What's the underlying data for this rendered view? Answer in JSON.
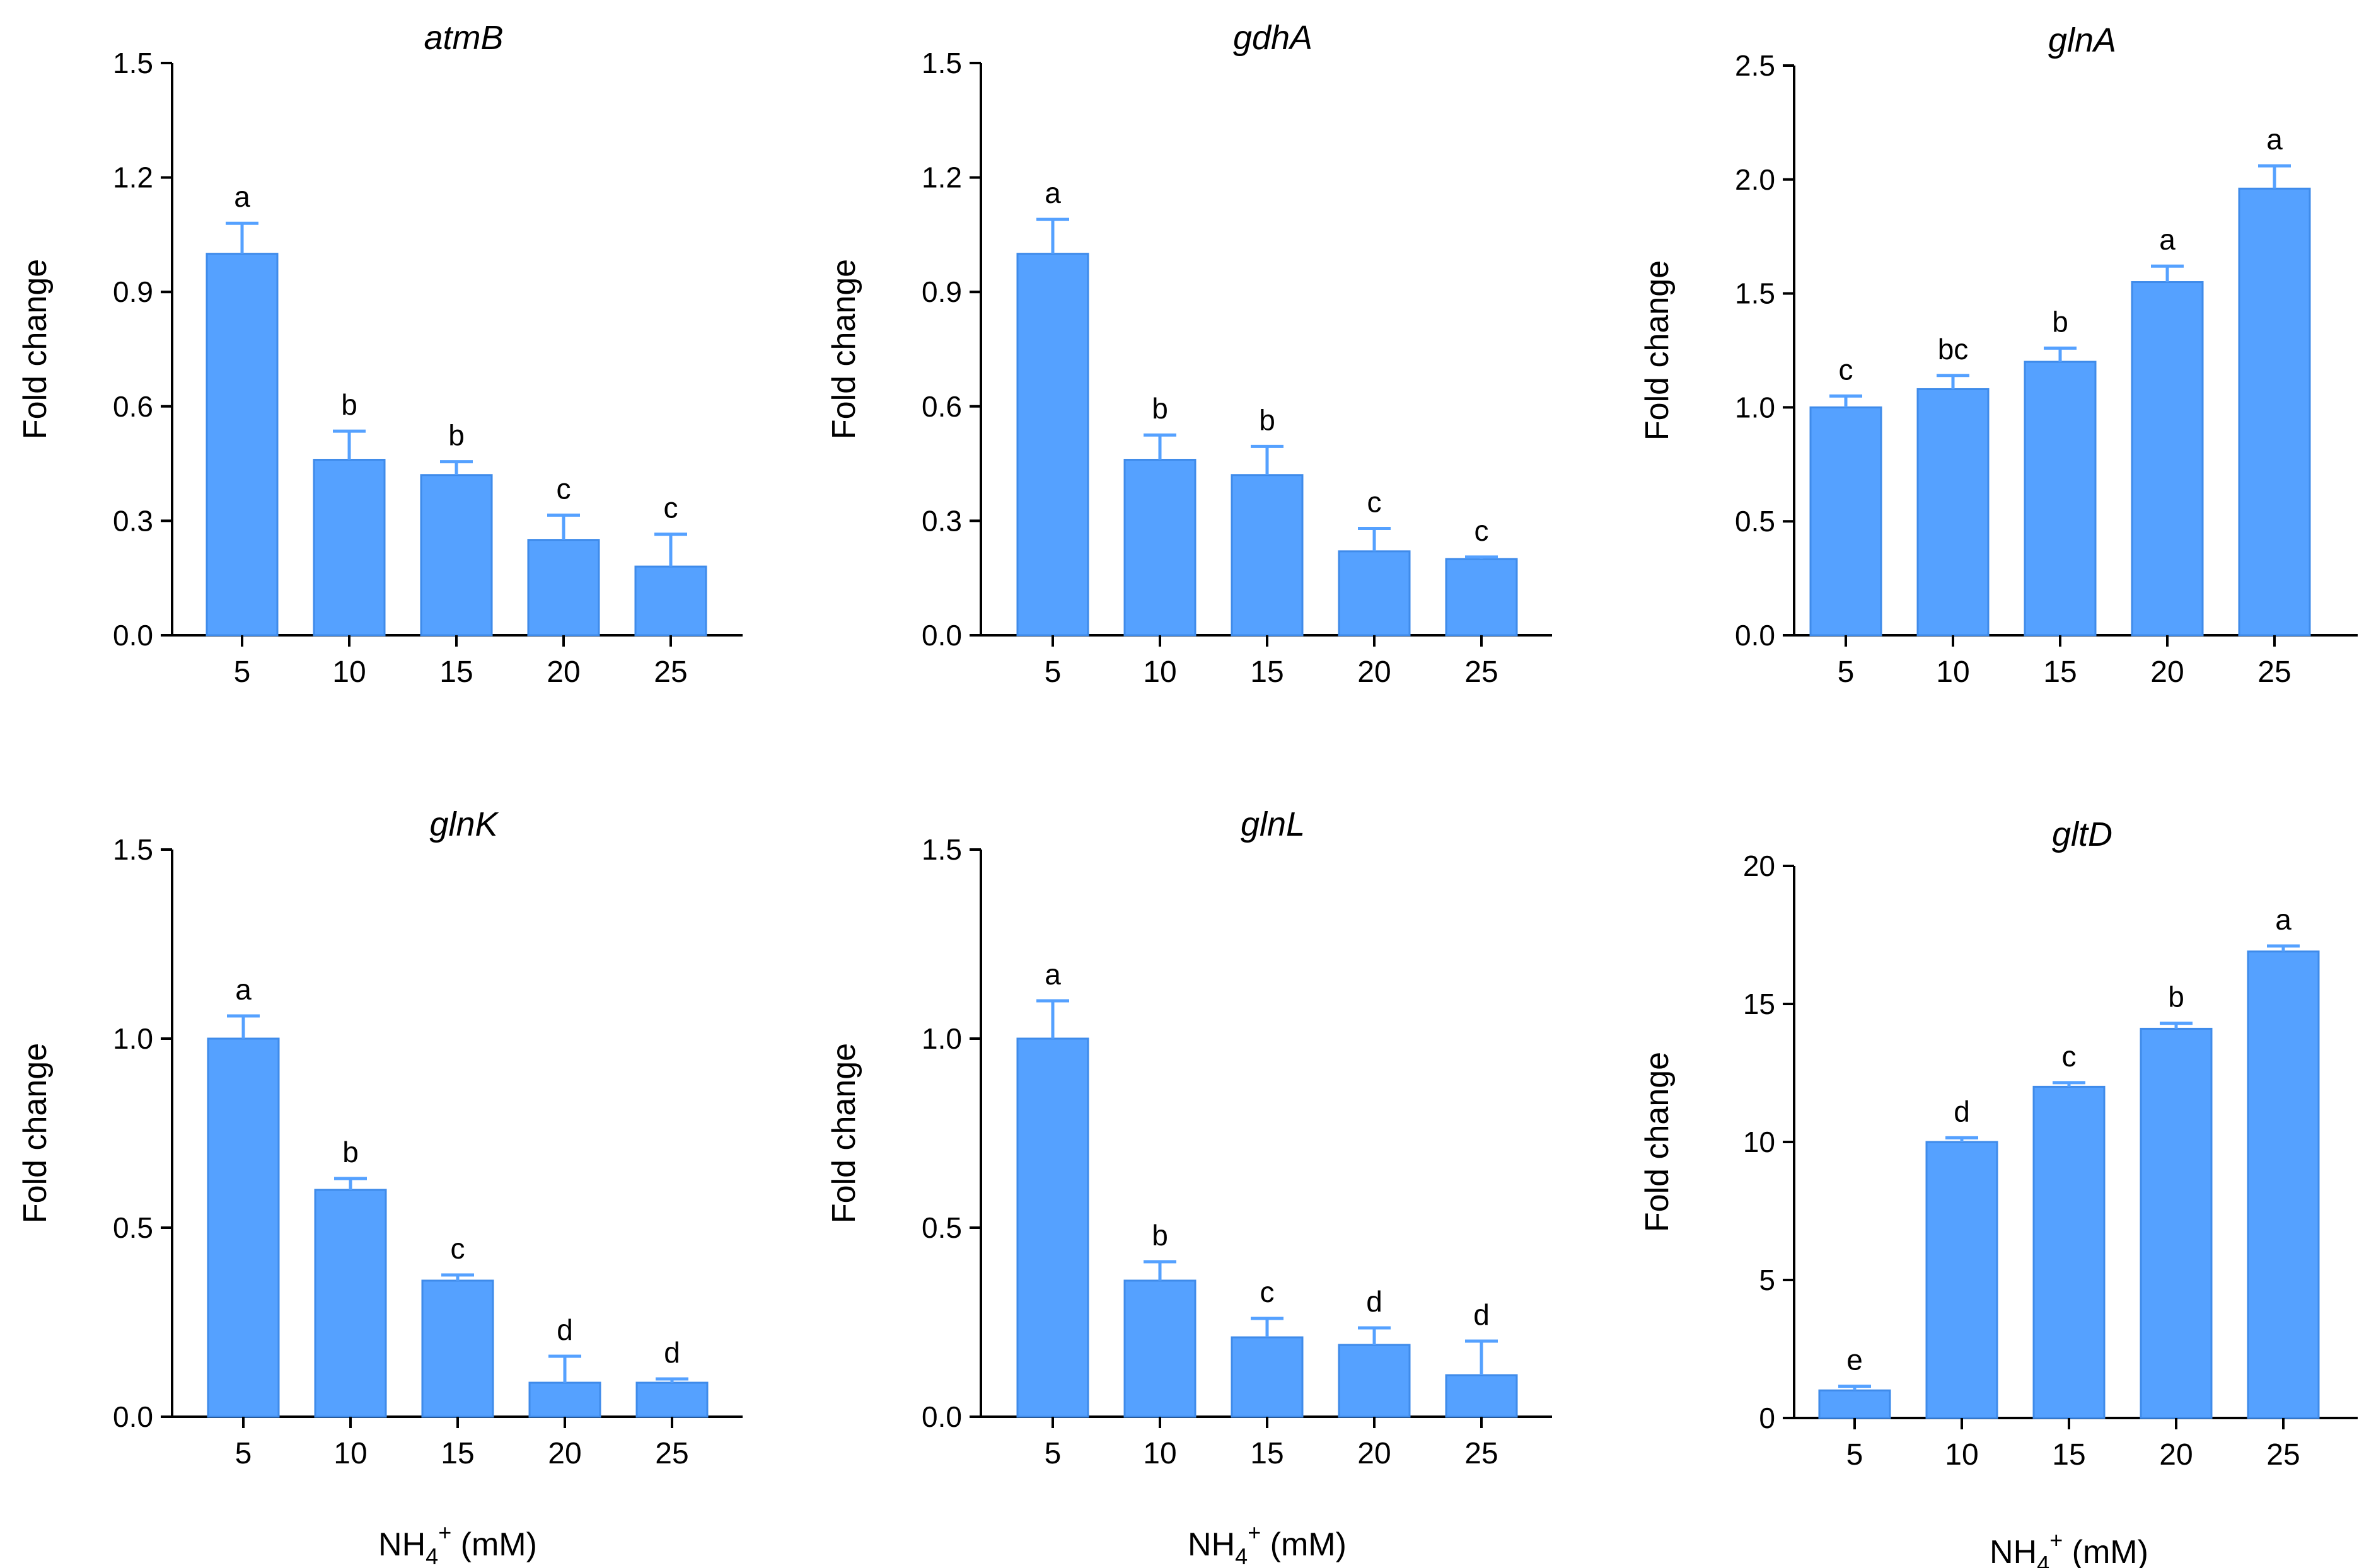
{
  "colors": {
    "bar": "#55A1FF",
    "error_bar": "#55A1FF",
    "axis": "#000000"
  },
  "x_axis_title": {
    "main": "NH",
    "subscript": "4",
    "superscript": "+",
    "unit": "(mM)"
  },
  "chart_data": [
    {
      "type": "bar",
      "title": "atmB",
      "ylabel": "Fold change",
      "categories": [
        "5",
        "10",
        "15",
        "20",
        "25"
      ],
      "values": [
        1.0,
        0.46,
        0.42,
        0.25,
        0.18
      ],
      "errors": [
        0.08,
        0.075,
        0.035,
        0.065,
        0.085
      ],
      "significance": [
        "a",
        "b",
        "b",
        "c",
        "c"
      ],
      "ylim": [
        0,
        1.5
      ],
      "yticks": [
        "0.0",
        "0.3",
        "0.6",
        "0.9",
        "1.2",
        "1.5"
      ],
      "xlabel": ""
    },
    {
      "type": "bar",
      "title": "gdhA",
      "ylabel": "Fold change",
      "categories": [
        "5",
        "10",
        "15",
        "20",
        "25"
      ],
      "values": [
        1.0,
        0.46,
        0.42,
        0.22,
        0.2
      ],
      "errors": [
        0.09,
        0.065,
        0.075,
        0.06,
        0.005
      ],
      "significance": [
        "a",
        "b",
        "b",
        "c",
        "c"
      ],
      "ylim": [
        0,
        1.5
      ],
      "yticks": [
        "0.0",
        "0.3",
        "0.6",
        "0.9",
        "1.2",
        "1.5"
      ],
      "xlabel": ""
    },
    {
      "type": "bar",
      "title": "glnA",
      "ylabel": "Fold change",
      "categories": [
        "5",
        "10",
        "15",
        "20",
        "25"
      ],
      "values": [
        1.0,
        1.08,
        1.2,
        1.55,
        1.96
      ],
      "errors": [
        0.05,
        0.06,
        0.06,
        0.07,
        0.1
      ],
      "significance": [
        "c",
        "bc",
        "b",
        "a",
        "a"
      ],
      "ylim": [
        0,
        2.5
      ],
      "yticks": [
        "0.0",
        "0.5",
        "1.0",
        "1.5",
        "2.0",
        "2.5"
      ],
      "xlabel": ""
    },
    {
      "type": "bar",
      "title": "glnK",
      "ylabel": "Fold change",
      "categories": [
        "5",
        "10",
        "15",
        "20",
        "25"
      ],
      "values": [
        1.0,
        0.6,
        0.36,
        0.09,
        0.09
      ],
      "errors": [
        0.06,
        0.03,
        0.015,
        0.07,
        0.01
      ],
      "significance": [
        "a",
        "b",
        "c",
        "d",
        "d"
      ],
      "ylim": [
        0,
        1.5
      ],
      "yticks": [
        "0.0",
        "0.5",
        "1.0",
        "1.5"
      ],
      "xlabel": "NH4+ (mM)"
    },
    {
      "type": "bar",
      "title": "glnL",
      "ylabel": "Fold change",
      "categories": [
        "5",
        "10",
        "15",
        "20",
        "25"
      ],
      "values": [
        1.0,
        0.36,
        0.21,
        0.19,
        0.11
      ],
      "errors": [
        0.1,
        0.05,
        0.05,
        0.045,
        0.09
      ],
      "significance": [
        "a",
        "b",
        "c",
        "d",
        "d"
      ],
      "ylim": [
        0,
        1.5
      ],
      "yticks": [
        "0.0",
        "0.5",
        "1.0",
        "1.5"
      ],
      "xlabel": "NH4+ (mM)"
    },
    {
      "type": "bar",
      "title": "gltD",
      "ylabel": "Fold change",
      "categories": [
        "5",
        "10",
        "15",
        "20",
        "25"
      ],
      "values": [
        1.0,
        10.0,
        12.0,
        14.1,
        16.9
      ],
      "errors": [
        0.15,
        0.15,
        0.15,
        0.2,
        0.2
      ],
      "significance": [
        "e",
        "d",
        "c",
        "b",
        "a"
      ],
      "ylim": [
        0,
        20
      ],
      "yticks": [
        "0",
        "5",
        "10",
        "15",
        "20"
      ],
      "xlabel": "NH4+ (mM)"
    }
  ]
}
